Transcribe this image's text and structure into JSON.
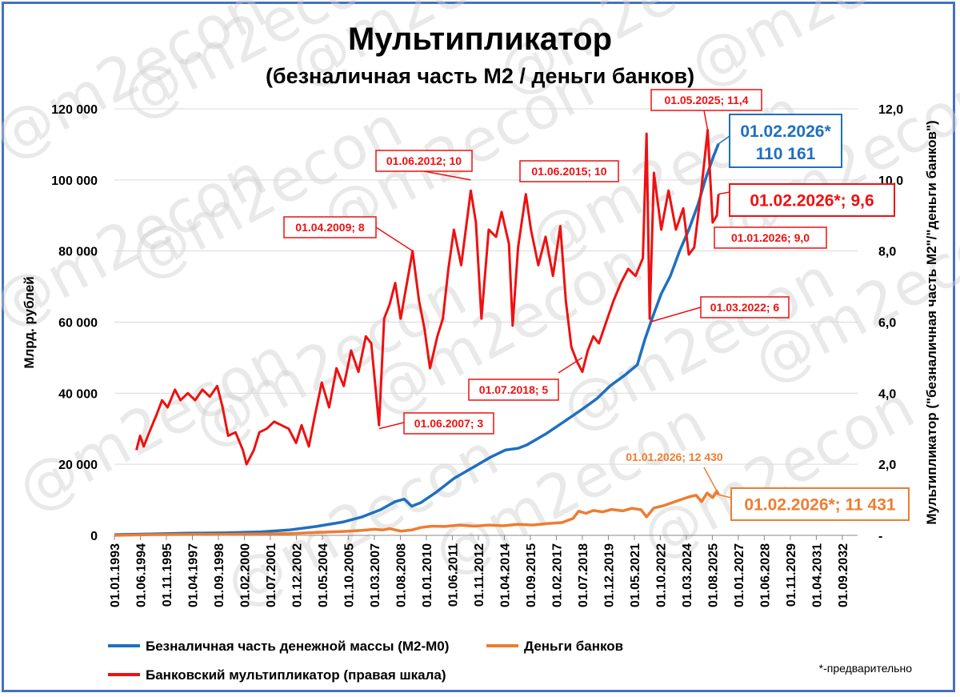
{
  "chart_data": {
    "type": "line",
    "title": "Мультипликатор",
    "subtitle": "(безналичная часть М2 / деньги банков)",
    "ylabel_left": "Млрд. рублей",
    "ylabel_right": "Мультипликатор (\"безналичная часть М2\"/\"деньги банков\")",
    "ylim_left": [
      0,
      120000
    ],
    "ylim_right": [
      0,
      12
    ],
    "yticks_left": [
      "0",
      "20 000",
      "40 000",
      "60 000",
      "80 000",
      "100 000",
      "120 000"
    ],
    "yticks_right": [
      "-",
      "2,0",
      "4,0",
      "6,0",
      "8,0",
      "10,0",
      "12,0"
    ],
    "xticks": [
      "01.01.1993",
      "01.06.1994",
      "01.11.1995",
      "01.04.1997",
      "01.09.1998",
      "01.02.2000",
      "01.07.2001",
      "01.12.2002",
      "01.05.2004",
      "01.10.2005",
      "01.03.2007",
      "01.08.2008",
      "01.01.2010",
      "01.06.2011",
      "01.11.2012",
      "01.04.2014",
      "01.09.2015",
      "01.02.2017",
      "01.07.2018",
      "01.12.2019",
      "01.05.2021",
      "01.10.2022",
      "01.03.2024",
      "01.08.2025",
      "01.01.2027",
      "01.06.2028",
      "01.11.2029",
      "01.04.2031",
      "01.09.2032"
    ],
    "grid": true,
    "legend_position": "bottom",
    "series": [
      {
        "name": "Безналичная часть денежной массы (М2-М0)",
        "axis": "left",
        "color": "#1f6fbf",
        "points": [
          [
            1993.0,
            200
          ],
          [
            1995.0,
            400
          ],
          [
            1997.0,
            600
          ],
          [
            1999.0,
            700
          ],
          [
            2001.0,
            1000
          ],
          [
            2002.5,
            1500
          ],
          [
            2004.0,
            2500
          ],
          [
            2005.5,
            3800
          ],
          [
            2006.5,
            5200
          ],
          [
            2007.5,
            7200
          ],
          [
            2008.3,
            9500
          ],
          [
            2008.8,
            10200
          ],
          [
            2009.2,
            8200
          ],
          [
            2009.7,
            9200
          ],
          [
            2010.5,
            12000
          ],
          [
            2011.5,
            16000
          ],
          [
            2012.5,
            19000
          ],
          [
            2013.5,
            22000
          ],
          [
            2014.3,
            24000
          ],
          [
            2015.0,
            24500
          ],
          [
            2015.5,
            25500
          ],
          [
            2016.5,
            28500
          ],
          [
            2017.5,
            32000
          ],
          [
            2018.5,
            35500
          ],
          [
            2019.3,
            38500
          ],
          [
            2020.0,
            42000
          ],
          [
            2020.8,
            45000
          ],
          [
            2021.5,
            48000
          ],
          [
            2021.9,
            55000
          ],
          [
            2022.3,
            61000
          ],
          [
            2022.8,
            68000
          ],
          [
            2023.3,
            73000
          ],
          [
            2023.8,
            80000
          ],
          [
            2024.3,
            86000
          ],
          [
            2024.8,
            93000
          ],
          [
            2025.2,
            100000
          ],
          [
            2025.6,
            106000
          ],
          [
            2025.92,
            110161
          ]
        ]
      },
      {
        "name": "Деньги банков",
        "axis": "left",
        "color": "#ed7d31",
        "points": [
          [
            1993.0,
            0
          ],
          [
            1995.0,
            200
          ],
          [
            1997.0,
            250
          ],
          [
            1999.0,
            300
          ],
          [
            2001.0,
            400
          ],
          [
            2002.5,
            500
          ],
          [
            2004.0,
            800
          ],
          [
            2005.5,
            1100
          ],
          [
            2006.5,
            1400
          ],
          [
            2007.2,
            1700
          ],
          [
            2007.6,
            1500
          ],
          [
            2008.0,
            1900
          ],
          [
            2008.6,
            1200
          ],
          [
            2009.2,
            1500
          ],
          [
            2009.7,
            2200
          ],
          [
            2010.3,
            2600
          ],
          [
            2011.0,
            2500
          ],
          [
            2011.8,
            2900
          ],
          [
            2012.6,
            2600
          ],
          [
            2013.4,
            2900
          ],
          [
            2014.2,
            2700
          ],
          [
            2015.0,
            3100
          ],
          [
            2015.8,
            2900
          ],
          [
            2016.6,
            3300
          ],
          [
            2017.4,
            3600
          ],
          [
            2018.0,
            4800
          ],
          [
            2018.3,
            6800
          ],
          [
            2018.7,
            6200
          ],
          [
            2019.1,
            7000
          ],
          [
            2019.6,
            6600
          ],
          [
            2020.1,
            7300
          ],
          [
            2020.7,
            6900
          ],
          [
            2021.2,
            7600
          ],
          [
            2021.7,
            7200
          ],
          [
            2022.0,
            5200
          ],
          [
            2022.4,
            7700
          ],
          [
            2022.9,
            8300
          ],
          [
            2023.4,
            9200
          ],
          [
            2023.9,
            10100
          ],
          [
            2024.3,
            10800
          ],
          [
            2024.7,
            11300
          ],
          [
            2025.0,
            9500
          ],
          [
            2025.3,
            11900
          ],
          [
            2025.6,
            10600
          ],
          [
            2025.83,
            12430
          ],
          [
            2025.92,
            11431
          ]
        ]
      },
      {
        "name": "Банковский мультипликатор (правая шкала)",
        "axis": "right",
        "color": "#ee1111",
        "points": [
          [
            1994.2,
            2.4
          ],
          [
            1994.4,
            2.8
          ],
          [
            1994.6,
            2.5
          ],
          [
            1994.9,
            2.9
          ],
          [
            1995.3,
            3.4
          ],
          [
            1995.6,
            3.8
          ],
          [
            1995.9,
            3.6
          ],
          [
            1996.3,
            4.1
          ],
          [
            1996.6,
            3.8
          ],
          [
            1997.0,
            4.0
          ],
          [
            1997.4,
            3.8
          ],
          [
            1997.8,
            4.1
          ],
          [
            1998.2,
            3.9
          ],
          [
            1998.6,
            4.2
          ],
          [
            1998.9,
            3.6
          ],
          [
            1999.2,
            2.8
          ],
          [
            1999.6,
            2.9
          ],
          [
            2000.0,
            2.4
          ],
          [
            2000.2,
            2.0
          ],
          [
            2000.6,
            2.4
          ],
          [
            2000.9,
            2.9
          ],
          [
            2001.3,
            3.0
          ],
          [
            2001.7,
            3.2
          ],
          [
            2002.1,
            3.1
          ],
          [
            2002.5,
            3.0
          ],
          [
            2002.9,
            2.6
          ],
          [
            2003.2,
            3.1
          ],
          [
            2003.6,
            2.5
          ],
          [
            2003.9,
            3.3
          ],
          [
            2004.3,
            4.3
          ],
          [
            2004.7,
            3.6
          ],
          [
            2005.1,
            4.7
          ],
          [
            2005.5,
            4.2
          ],
          [
            2005.9,
            5.2
          ],
          [
            2006.3,
            4.6
          ],
          [
            2006.7,
            5.6
          ],
          [
            2007.0,
            5.4
          ],
          [
            2007.42,
            3.1
          ],
          [
            2007.7,
            6.1
          ],
          [
            2008.0,
            6.5
          ],
          [
            2008.3,
            7.1
          ],
          [
            2008.6,
            6.1
          ],
          [
            2009.25,
            8.0
          ],
          [
            2009.6,
            6.6
          ],
          [
            2009.9,
            5.8
          ],
          [
            2010.2,
            4.7
          ],
          [
            2010.6,
            5.6
          ],
          [
            2010.9,
            6.1
          ],
          [
            2011.2,
            7.5
          ],
          [
            2011.5,
            8.6
          ],
          [
            2011.9,
            7.6
          ],
          [
            2012.42,
            9.7
          ],
          [
            2012.7,
            8.8
          ],
          [
            2013.0,
            6.1
          ],
          [
            2013.4,
            8.6
          ],
          [
            2013.8,
            8.4
          ],
          [
            2014.1,
            9.1
          ],
          [
            2014.5,
            8.2
          ],
          [
            2014.7,
            5.9
          ],
          [
            2015.0,
            8.1
          ],
          [
            2015.42,
            9.6
          ],
          [
            2015.7,
            8.6
          ],
          [
            2016.1,
            7.6
          ],
          [
            2016.5,
            8.4
          ],
          [
            2016.9,
            7.3
          ],
          [
            2017.3,
            8.7
          ],
          [
            2017.6,
            6.6
          ],
          [
            2017.9,
            5.3
          ],
          [
            2018.2,
            4.9
          ],
          [
            2018.5,
            4.6
          ],
          [
            2018.8,
            5.2
          ],
          [
            2019.1,
            5.6
          ],
          [
            2019.4,
            5.4
          ],
          [
            2019.8,
            6.0
          ],
          [
            2020.2,
            6.6
          ],
          [
            2020.6,
            7.1
          ],
          [
            2021.0,
            7.5
          ],
          [
            2021.4,
            7.3
          ],
          [
            2021.8,
            7.8
          ],
          [
            2022.0,
            11.3
          ],
          [
            2022.17,
            6.1
          ],
          [
            2022.4,
            10.2
          ],
          [
            2022.8,
            8.6
          ],
          [
            2023.2,
            9.7
          ],
          [
            2023.6,
            8.6
          ],
          [
            2024.0,
            9.2
          ],
          [
            2024.3,
            7.9
          ],
          [
            2024.6,
            8.1
          ],
          [
            2025.0,
            9.8
          ],
          [
            2025.33,
            11.4
          ],
          [
            2025.6,
            8.8
          ],
          [
            2025.83,
            9.0
          ],
          [
            2025.92,
            9.6
          ]
        ]
      }
    ],
    "annotations": [
      {
        "label": "01.06.2007; 3",
        "series": "Банковский мультипликатор (правая шкала)",
        "x": 2007.42,
        "y": 3.0
      },
      {
        "label": "01.04.2009; 8",
        "series": "Банковский мультипликатор (правая шкала)",
        "x": 2009.25,
        "y": 8.0
      },
      {
        "label": "01.06.2012; 10",
        "series": "Банковский мультипликатор (правая шкала)",
        "x": 2012.42,
        "y": 10.0
      },
      {
        "label": "01.06.2015; 10",
        "series": "Банковский мультипликатор (правая шкала)",
        "x": 2015.42,
        "y": 10.0
      },
      {
        "label": "01.07.2018; 5",
        "series": "Банковский мультипликатор (правая шкала)",
        "x": 2018.5,
        "y": 5.0
      },
      {
        "label": "01.03.2022; 6",
        "series": "Банковский мультипликатор (правая шкала)",
        "x": 2022.17,
        "y": 6.0
      },
      {
        "label": "01.05.2025; 11,4",
        "series": "Банковский мультипликатор (правая шкала)",
        "x": 2025.33,
        "y": 11.4
      },
      {
        "label": "01.01.2026;  9,0",
        "series": "Банковский мультипликатор (правая шкала)",
        "x": 2025.83,
        "y": 9.0
      },
      {
        "label": "01.02.2026*;   9,6",
        "series": "Банковский мультипликатор (правая шкала)",
        "x": 2025.92,
        "y": 9.6
      },
      {
        "label_line1": "01.02.2026*",
        "label_line2": "110 161",
        "series": "Безналичная часть денежной массы (М2-М0)",
        "x": 2025.92,
        "y": 110161
      },
      {
        "label": "01.01.2026; 12 430",
        "series": "Деньги банков",
        "x": 2025.83,
        "y": 12430
      },
      {
        "label": "01.02.2026*; 11 431",
        "series": "Деньги банков",
        "x": 2025.92,
        "y": 11431
      }
    ],
    "footnote": "*-предварительно",
    "watermark": "@m2econ"
  }
}
